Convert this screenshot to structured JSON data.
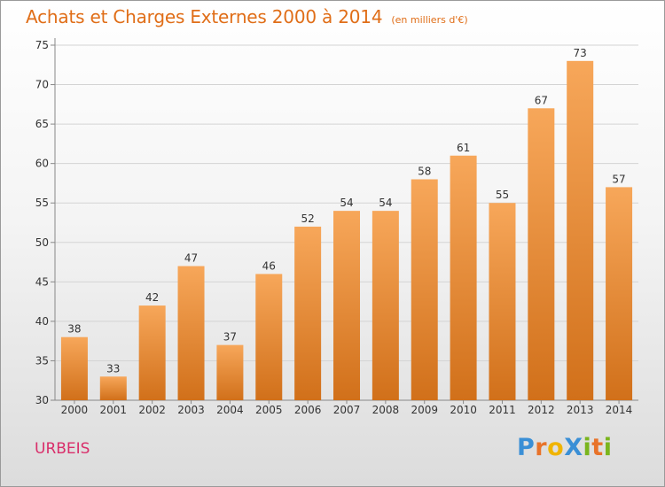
{
  "title": "Achats et Charges Externes 2000 à 2014",
  "subtitle": "(en milliers d'€)",
  "commune": "URBEIS",
  "logo": {
    "text": "ProXiti",
    "letters": [
      "P",
      "r",
      "o",
      "X",
      "i",
      "t",
      "i"
    ],
    "colors": [
      "#3a8fd6",
      "#e8732a",
      "#f0b400",
      "#3a8fd6",
      "#7ab51d",
      "#e8732a",
      "#7ab51d"
    ]
  },
  "chart_data": {
    "type": "bar",
    "categories": [
      "2000",
      "2001",
      "2002",
      "2003",
      "2004",
      "2005",
      "2006",
      "2007",
      "2008",
      "2009",
      "2010",
      "2011",
      "2012",
      "2013",
      "2014"
    ],
    "values": [
      38,
      33,
      42,
      47,
      37,
      46,
      52,
      54,
      54,
      58,
      61,
      55,
      67,
      73,
      57
    ],
    "ylim": [
      30,
      75
    ],
    "yticks": [
      30,
      35,
      40,
      45,
      50,
      55,
      60,
      65,
      70,
      75
    ],
    "title": "Achats et Charges Externes 2000 à 2014",
    "xlabel": "",
    "ylabel": "",
    "grid": true,
    "bar_color_top": "#f7a75a",
    "bar_color_bottom": "#d1701a"
  }
}
